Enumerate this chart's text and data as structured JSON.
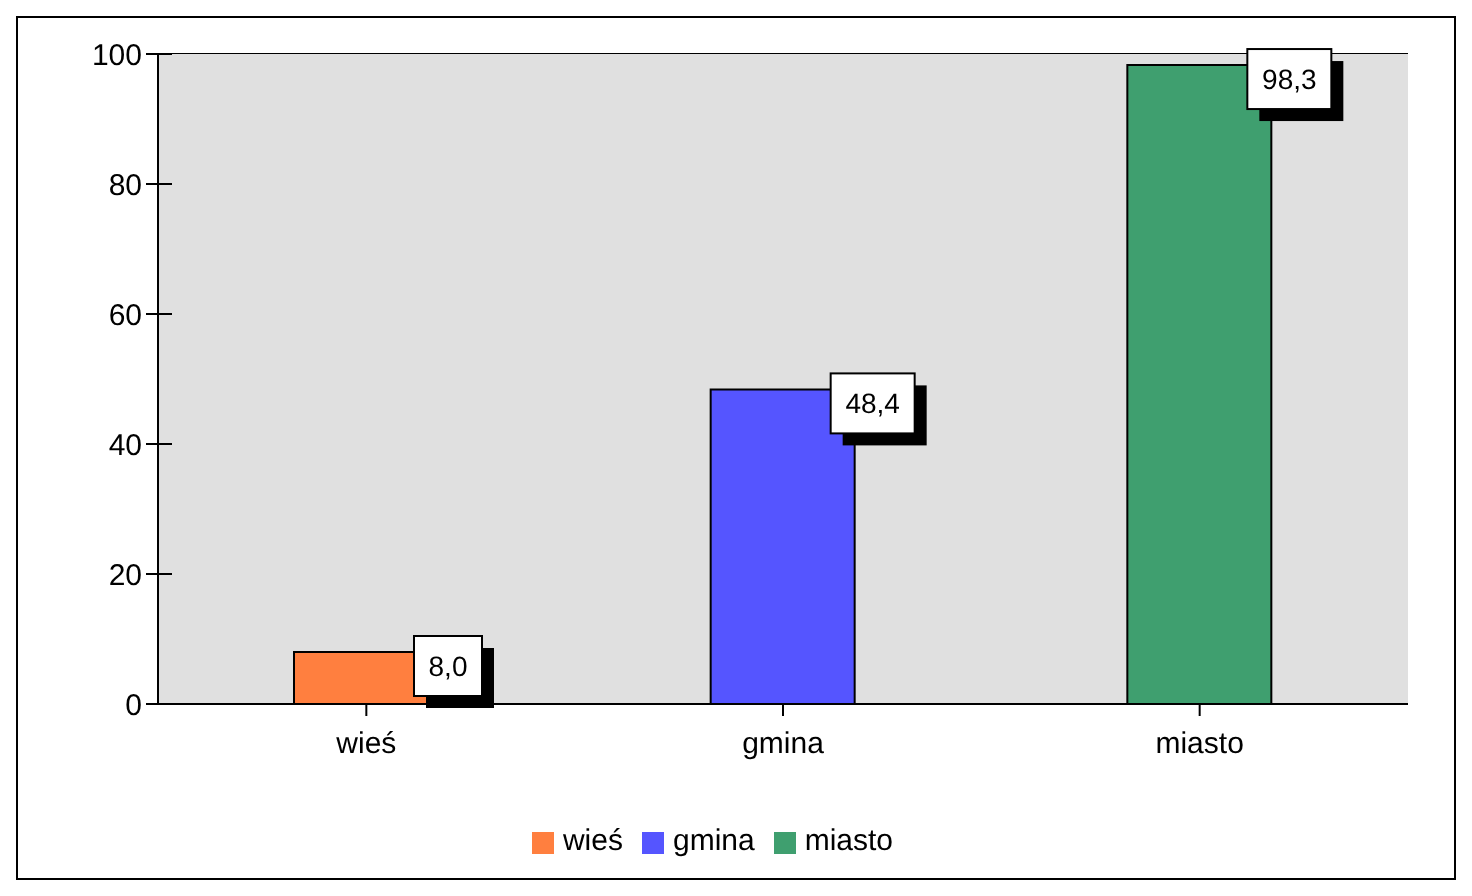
{
  "chart_data": {
    "type": "bar",
    "stacked": true,
    "categories": [
      "wieś",
      "gmina",
      "miasto"
    ],
    "series": [
      {
        "name": "wieś",
        "color": "#ff7f3f",
        "values": [
          8.0,
          null,
          null
        ],
        "value_labels": [
          "8,0",
          null,
          null
        ]
      },
      {
        "name": "gmina",
        "color": "#5555ff",
        "values": [
          null,
          48.4,
          null
        ],
        "value_labels": [
          null,
          "48,4",
          null
        ]
      },
      {
        "name": "miasto",
        "color": "#3f9f6f",
        "values": [
          null,
          null,
          98.3
        ],
        "value_labels": [
          null,
          null,
          "98,3"
        ]
      }
    ],
    "ylim": [
      0,
      100
    ],
    "yticks": [
      0,
      20,
      40,
      60,
      80,
      100
    ],
    "grid": "y",
    "legend": "bottom"
  }
}
